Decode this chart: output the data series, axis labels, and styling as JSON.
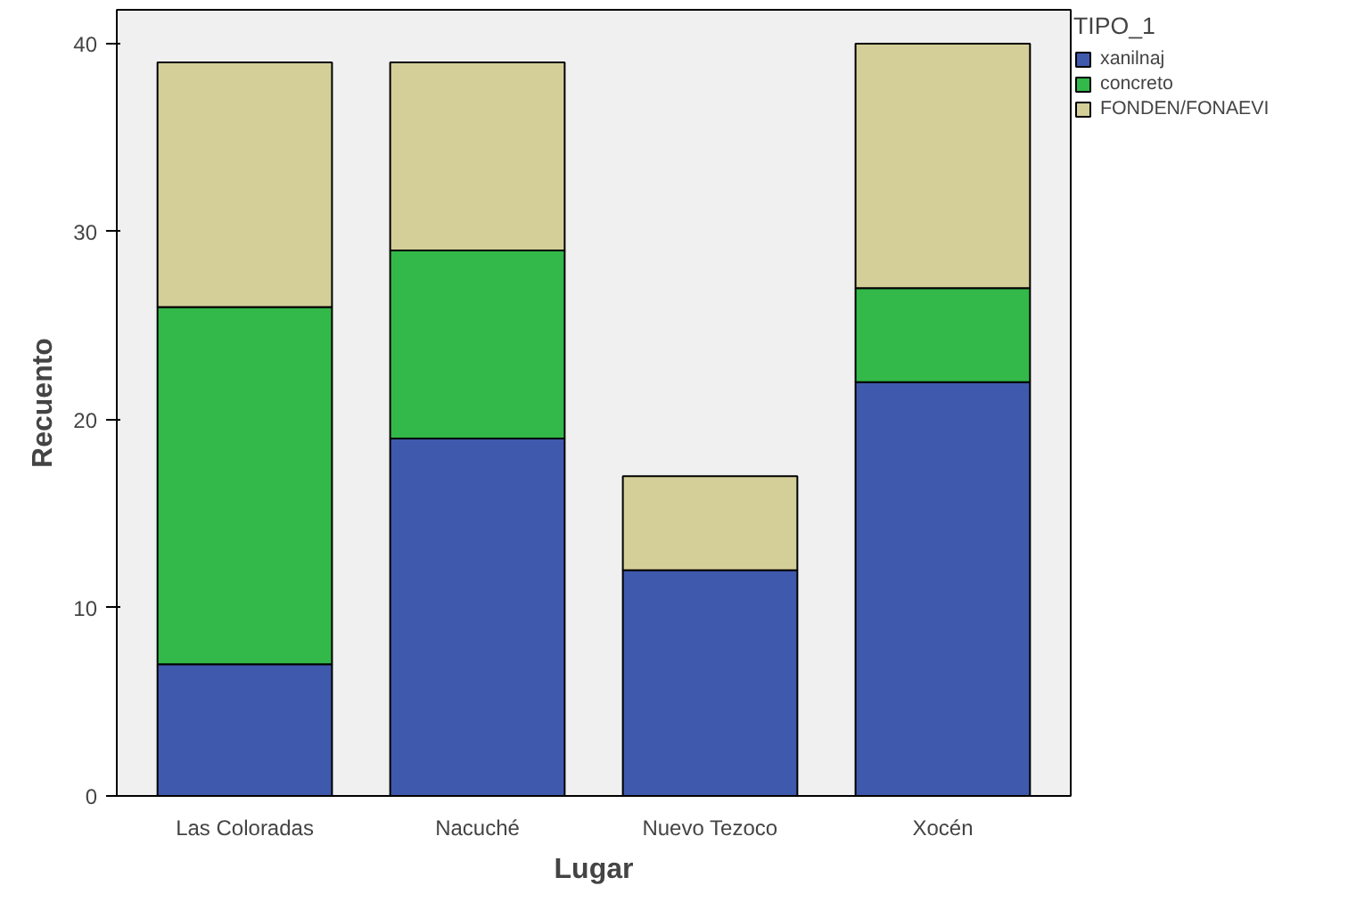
{
  "chart_data": {
    "type": "bar",
    "stacked": true,
    "xlabel": "Lugar",
    "ylabel": "Recuento",
    "legend_title": "TIPO_1",
    "legend": "top right",
    "categories": [
      "Las Coloradas",
      "Nacuché",
      "Nuevo Tezoco",
      "Xocén"
    ],
    "series": [
      {
        "name": "xanilnaj",
        "color": "#3f59ad",
        "values": [
          7,
          19,
          12,
          22
        ]
      },
      {
        "name": "concreto",
        "color": "#33b84a",
        "values": [
          19,
          10,
          0,
          5
        ]
      },
      {
        "name": "FONDEN/FONAEVI",
        "color": "#d4cf98",
        "values": [
          13,
          10,
          5,
          13
        ]
      }
    ],
    "ylim": [
      0,
      41.8
    ],
    "yticks": [
      0,
      10,
      20,
      30,
      40
    ],
    "grid": false
  }
}
